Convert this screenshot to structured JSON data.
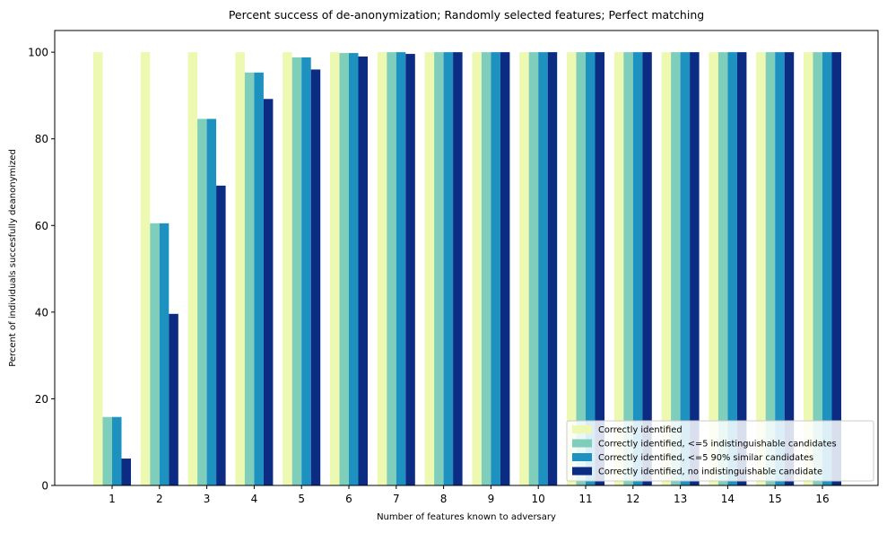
{
  "chart_data": {
    "type": "bar",
    "title": "Percent success of de-anonymization; Randomly selected features; Perfect matching",
    "xlabel": "Number of features known to adversary",
    "ylabel": "Percent of individuals succesfully deanonymized",
    "categories": [
      "1",
      "2",
      "3",
      "4",
      "5",
      "6",
      "7",
      "8",
      "9",
      "10",
      "11",
      "12",
      "13",
      "14",
      "15",
      "16"
    ],
    "ylim": [
      0,
      105
    ],
    "yticks": [
      0,
      20,
      40,
      60,
      80,
      100
    ],
    "grid": false,
    "legend_position": "lower-right",
    "series": [
      {
        "name": "Correctly identified",
        "color": "#edf8b1",
        "values": [
          100,
          100,
          100,
          100,
          100,
          100,
          100,
          100,
          100,
          100,
          100,
          100,
          100,
          100,
          100,
          100
        ]
      },
      {
        "name": "Correctly identified, <=5 indistinguishable candidates",
        "color": "#7fcdbb",
        "values": [
          15.8,
          60.5,
          84.6,
          95.3,
          98.8,
          99.8,
          100,
          100,
          100,
          100,
          100,
          100,
          100,
          100,
          100,
          100
        ]
      },
      {
        "name": "Correctly identified, <=5 90% similar candidates",
        "color": "#1d91c0",
        "values": [
          15.8,
          60.5,
          84.6,
          95.3,
          98.8,
          99.8,
          100,
          100,
          100,
          100,
          100,
          100,
          100,
          100,
          100,
          100
        ]
      },
      {
        "name": "Correctly identified, no indistinguishable candidate",
        "color": "#0c2c84",
        "values": [
          6.2,
          39.6,
          69.2,
          89.2,
          96.0,
          99.0,
          99.6,
          100,
          100,
          100,
          100,
          100,
          100,
          100,
          100,
          100
        ]
      }
    ]
  }
}
